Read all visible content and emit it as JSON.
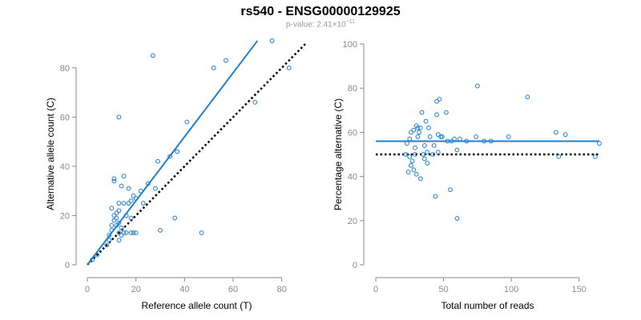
{
  "title": "rs540 - ENSG00000129925",
  "subtitle": {
    "prefix": "p-value: 2.41×10",
    "exponent": "−11"
  },
  "colors": {
    "points": "#1e7fd1",
    "fit": "#1e7fd1",
    "reference": "#000000",
    "axis": "#8a8a8a"
  },
  "chart_data": [
    {
      "type": "scatter",
      "xlabel": "Reference allele count (T)",
      "ylabel": "Alternative allele count (C)",
      "xlim": [
        0,
        90
      ],
      "ylim": [
        0,
        90
      ],
      "xticks": [
        0,
        20,
        40,
        60,
        80
      ],
      "yticks": [
        0,
        20,
        40,
        60,
        80
      ],
      "points": [
        [
          2,
          2
        ],
        [
          4,
          4
        ],
        [
          8,
          8
        ],
        [
          9,
          10
        ],
        [
          9,
          12
        ],
        [
          10,
          14
        ],
        [
          10,
          23
        ],
        [
          10,
          16
        ],
        [
          11,
          18
        ],
        [
          11,
          20
        ],
        [
          11,
          34
        ],
        [
          11,
          35
        ],
        [
          12,
          16
        ],
        [
          12,
          19
        ],
        [
          12,
          21
        ],
        [
          13,
          13
        ],
        [
          13,
          17
        ],
        [
          13,
          22
        ],
        [
          13,
          25
        ],
        [
          13,
          60
        ],
        [
          13,
          10
        ],
        [
          14,
          12
        ],
        [
          14,
          15
        ],
        [
          14,
          32
        ],
        [
          15,
          13
        ],
        [
          15,
          25
        ],
        [
          15,
          36
        ],
        [
          16,
          20
        ],
        [
          16,
          13
        ],
        [
          17,
          25
        ],
        [
          17,
          31
        ],
        [
          18,
          26
        ],
        [
          18,
          19
        ],
        [
          18,
          13
        ],
        [
          19,
          13
        ],
        [
          19,
          28
        ],
        [
          20,
          13
        ],
        [
          20,
          27
        ],
        [
          22,
          30
        ],
        [
          23,
          25
        ],
        [
          25,
          33
        ],
        [
          27,
          85
        ],
        [
          28,
          31
        ],
        [
          29,
          42
        ],
        [
          30,
          14
        ],
        [
          34,
          44
        ],
        [
          36,
          19
        ],
        [
          37,
          46
        ],
        [
          41,
          58
        ],
        [
          47,
          13
        ],
        [
          52,
          80
        ],
        [
          57,
          83
        ],
        [
          69,
          66
        ],
        [
          76,
          91
        ],
        [
          83,
          80
        ]
      ],
      "fit_line": {
        "x": [
          0,
          70
        ],
        "y": [
          0,
          91
        ]
      },
      "reference_line": {
        "x": [
          0,
          90
        ],
        "y": [
          0,
          90
        ]
      }
    },
    {
      "type": "scatter",
      "xlabel": "Total number of reads",
      "ylabel": "Percentage alternative (C)",
      "xlim": [
        0,
        165
      ],
      "ylim": [
        0,
        100
      ],
      "xticks": [
        0,
        50,
        100,
        150
      ],
      "yticks": [
        0,
        20,
        40,
        60,
        80,
        100
      ],
      "points": [
        [
          22,
          50
        ],
        [
          23,
          55
        ],
        [
          24,
          42
        ],
        [
          25,
          57
        ],
        [
          25,
          49
        ],
        [
          26,
          60
        ],
        [
          26,
          45
        ],
        [
          27,
          47
        ],
        [
          28,
          61
        ],
        [
          28,
          43
        ],
        [
          29,
          53
        ],
        [
          29,
          50
        ],
        [
          30,
          63
        ],
        [
          30,
          41
        ],
        [
          31,
          58
        ],
        [
          31,
          62
        ],
        [
          32,
          60
        ],
        [
          33,
          39
        ],
        [
          33,
          62
        ],
        [
          34,
          69
        ],
        [
          35,
          50
        ],
        [
          36,
          48
        ],
        [
          36,
          54
        ],
        [
          37,
          65
        ],
        [
          38,
          51
        ],
        [
          38,
          46
        ],
        [
          39,
          62
        ],
        [
          40,
          58
        ],
        [
          42,
          50
        ],
        [
          43,
          54
        ],
        [
          44,
          31
        ],
        [
          45,
          74
        ],
        [
          45,
          68
        ],
        [
          46,
          59
        ],
        [
          46,
          51
        ],
        [
          47,
          75
        ],
        [
          48,
          58
        ],
        [
          49,
          58
        ],
        [
          52,
          69
        ],
        [
          53,
          56
        ],
        [
          55,
          34
        ],
        [
          56,
          56
        ],
        [
          58,
          57
        ],
        [
          60,
          21
        ],
        [
          60,
          52
        ],
        [
          62,
          57
        ],
        [
          67,
          56
        ],
        [
          74,
          58
        ],
        [
          75,
          81
        ],
        [
          80,
          56
        ],
        [
          85,
          56
        ],
        [
          98,
          58
        ],
        [
          112,
          76
        ],
        [
          133,
          60
        ],
        [
          135,
          49
        ],
        [
          140,
          59
        ],
        [
          162,
          49
        ],
        [
          165,
          55
        ]
      ],
      "fit_line": {
        "x": [
          0,
          165
        ],
        "y": [
          56,
          56
        ]
      },
      "reference_line": {
        "x": [
          0,
          165
        ],
        "y": [
          50,
          50
        ]
      }
    }
  ]
}
